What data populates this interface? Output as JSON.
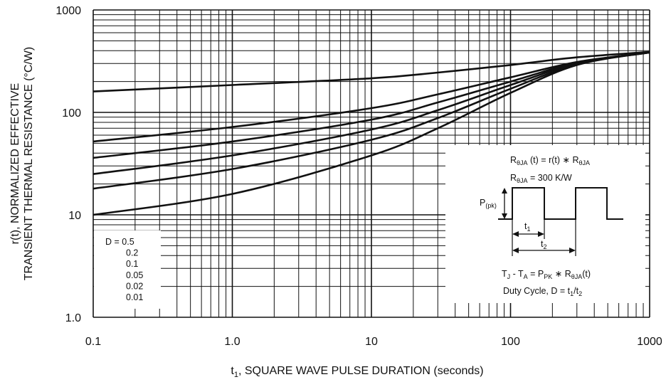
{
  "chart_data": {
    "type": "line",
    "x_scale": "log",
    "y_scale": "log",
    "xlim": [
      0.1,
      1000
    ],
    "ylim": [
      1.0,
      1000
    ],
    "grid": "on",
    "x_ticks": [
      "0.1",
      "1.0",
      "10",
      "100",
      "1000"
    ],
    "y_ticks": [
      "1000",
      "100",
      "10",
      "1.0"
    ],
    "xlabel_main": "t",
    "xlabel_sub": "1",
    "xlabel_rest": ", SQUARE WAVE PULSE DURATION (seconds)",
    "ylabel_line1": "r(t), NORMALIZED EFFECTIVE",
    "ylabel_line2": "TRANSIENT THERMAL RESISTANCE (°C/W)",
    "legend": {
      "placement": "bottom-left",
      "prefix": "D = ",
      "entries": [
        "0.5",
        "0.2",
        "0.1",
        "0.05",
        "0.02",
        "0.01"
      ]
    },
    "series": [
      {
        "name": "0.5",
        "x": [
          0.1,
          1,
          10,
          30,
          100,
          300,
          1000
        ],
        "y": [
          160,
          185,
          215,
          245,
          290,
          345,
          390
        ]
      },
      {
        "name": "0.2",
        "x": [
          0.1,
          1,
          10,
          30,
          100,
          300,
          1000
        ],
        "y": [
          52,
          72,
          110,
          150,
          220,
          310,
          385
        ]
      },
      {
        "name": "0.1",
        "x": [
          0.1,
          1,
          10,
          30,
          100,
          300,
          1000
        ],
        "y": [
          36,
          52,
          85,
          125,
          200,
          305,
          385
        ]
      },
      {
        "name": "0.05",
        "x": [
          0.1,
          1,
          10,
          30,
          100,
          300,
          1000
        ],
        "y": [
          25,
          38,
          68,
          105,
          185,
          300,
          385
        ]
      },
      {
        "name": "0.02",
        "x": [
          0.1,
          1,
          10,
          30,
          100,
          300,
          1000
        ],
        "y": [
          18,
          28,
          54,
          88,
          170,
          295,
          385
        ]
      },
      {
        "name": "0.01",
        "x": [
          0.1,
          1,
          10,
          30,
          100,
          300,
          1000
        ],
        "y": [
          10,
          16,
          38,
          70,
          155,
          290,
          385
        ]
      }
    ],
    "inset": {
      "placement": "bottom-right",
      "formula1": {
        "a": "R",
        "as": "θJA",
        "b": " (t) = r(t) ∗ R",
        "bs": "θJA"
      },
      "formula2": {
        "a": "R",
        "as": "θJA",
        "b": " =  300 K/W"
      },
      "ppk": {
        "a": "P",
        "as": "(pk)"
      },
      "t1": {
        "a": "t",
        "as": "1"
      },
      "t2": {
        "a": "t",
        "as": "2"
      },
      "formula3": {
        "a": "T",
        "as": "J",
        "b": " - T",
        "bs": "A",
        "c": " = P",
        "cs": "PK",
        "d": " ∗ R",
        "ds": "θJA",
        "e": "(t)"
      },
      "formula4": {
        "a": "Duty Cycle, D = t",
        "as": "1",
        "b": "/t",
        "bs": "2"
      }
    }
  }
}
